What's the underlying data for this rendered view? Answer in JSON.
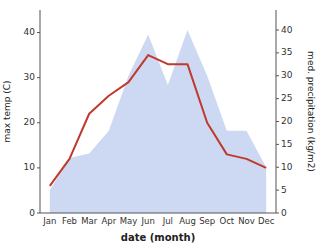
{
  "chart_data": {
    "type": "line",
    "categories": [
      "Jan",
      "Feb",
      "Mar",
      "Apr",
      "May",
      "Jun",
      "Jul",
      "Aug",
      "Sep",
      "Oct",
      "Nov",
      "Dec"
    ],
    "series": [
      {
        "type": "area",
        "axis": "y2",
        "color": "#b8c8ee",
        "values": [
          5,
          12,
          13,
          18,
          30,
          39,
          28,
          40,
          30,
          18,
          18,
          10
        ]
      },
      {
        "type": "line",
        "color": "#c0392b",
        "values": [
          6,
          12,
          22,
          26,
          29,
          35,
          33,
          33,
          20,
          13,
          12,
          10
        ]
      }
    ],
    "xlabel": "date (month)",
    "ylabel": "max temp (C)",
    "y2label": "med. precipitation (kg/m2)",
    "ylim": [
      0,
      45
    ],
    "yticks": [
      0,
      10,
      20,
      30,
      40
    ],
    "y2lim": [
      0,
      44.375
    ],
    "y2ticks": [
      0,
      5,
      10,
      15,
      20,
      25,
      30,
      35,
      40
    ],
    "grid": false
  }
}
